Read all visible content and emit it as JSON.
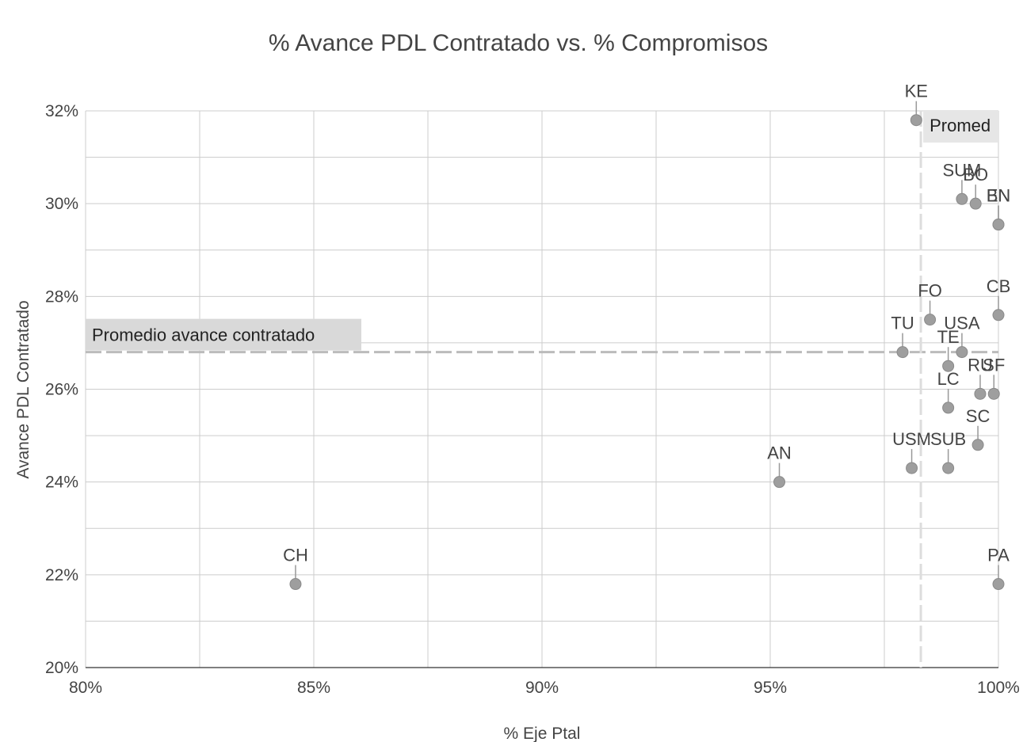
{
  "chart_data": {
    "type": "scatter",
    "title": "% Avance PDL Contratado vs. % Compromisos",
    "xlabel": "% Eje Ptal",
    "ylabel": "Avance PDL Contratado",
    "xlim": [
      0.8,
      1.0
    ],
    "ylim": [
      0.2,
      0.32
    ],
    "x_ticks": [
      0.8,
      0.85,
      0.9,
      0.95,
      1.0
    ],
    "x_tick_labels": [
      "80%",
      "85%",
      "90%",
      "95%",
      "100%"
    ],
    "y_ticks": [
      0.2,
      0.22,
      0.24,
      0.26,
      0.28,
      0.3,
      0.32
    ],
    "y_tick_labels": [
      "20%",
      "22%",
      "24%",
      "26%",
      "28%",
      "30%",
      "32%"
    ],
    "grid": true,
    "marker_color": "#9e9e9e",
    "reference_lines": [
      {
        "orientation": "horizontal",
        "value": 0.268,
        "label": "Promedio avance contratado"
      },
      {
        "orientation": "vertical",
        "value": 0.983,
        "label": "Promed"
      }
    ],
    "points": [
      {
        "label": "KE",
        "x": 0.982,
        "y": 0.318
      },
      {
        "label": "SUM",
        "x": 0.992,
        "y": 0.301
      },
      {
        "label": "BO",
        "x": 0.995,
        "y": 0.3
      },
      {
        "label": "EN",
        "x": 1.0,
        "y": 0.2955
      },
      {
        "label": "BN",
        "x": 1.0,
        "y": 0.2955
      },
      {
        "label": "FO",
        "x": 0.985,
        "y": 0.275
      },
      {
        "label": "CB",
        "x": 1.0,
        "y": 0.276
      },
      {
        "label": "TU",
        "x": 0.979,
        "y": 0.268
      },
      {
        "label": "USA",
        "x": 0.992,
        "y": 0.268
      },
      {
        "label": "TE",
        "x": 0.989,
        "y": 0.265
      },
      {
        "label": "RU",
        "x": 0.996,
        "y": 0.259
      },
      {
        "label": "SF",
        "x": 0.999,
        "y": 0.259
      },
      {
        "label": "LC",
        "x": 0.989,
        "y": 0.256
      },
      {
        "label": "SC",
        "x": 0.9955,
        "y": 0.248
      },
      {
        "label": "USM",
        "x": 0.981,
        "y": 0.243
      },
      {
        "label": "SUB",
        "x": 0.989,
        "y": 0.243
      },
      {
        "label": "AN",
        "x": 0.952,
        "y": 0.24
      },
      {
        "label": "CH",
        "x": 0.846,
        "y": 0.218
      },
      {
        "label": "PA",
        "x": 1.0,
        "y": 0.218
      }
    ]
  }
}
